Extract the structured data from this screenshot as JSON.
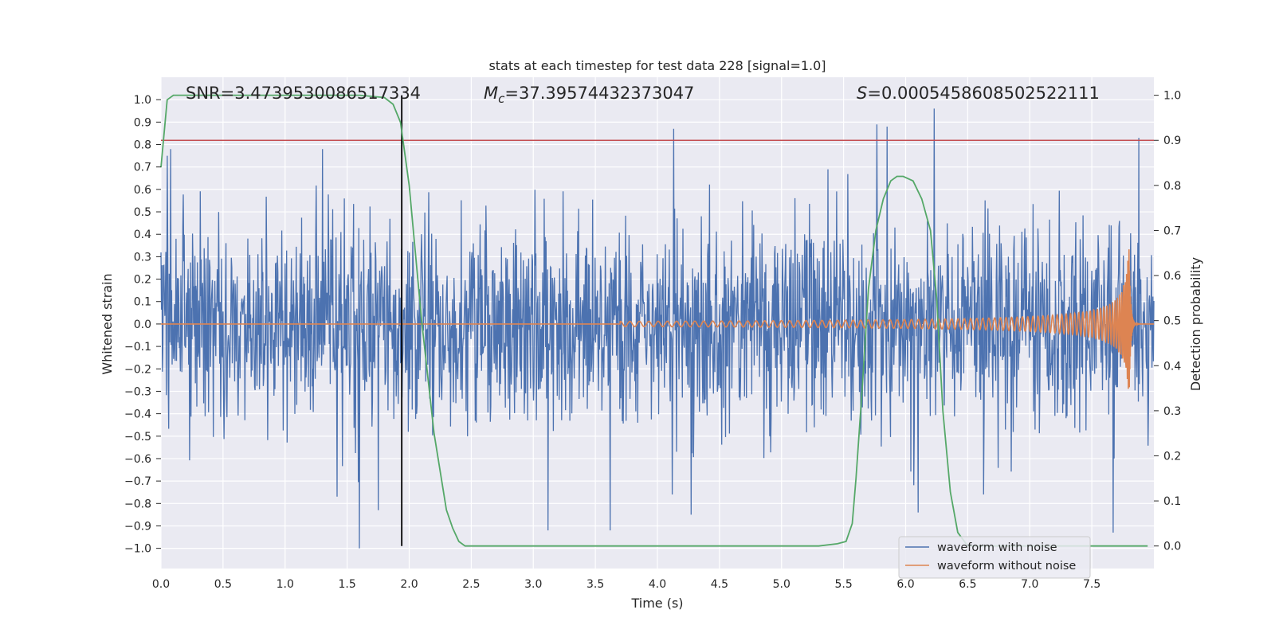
{
  "chart_data": {
    "type": "line",
    "title": "stats at each timestep for test data 228 [signal=1.0]",
    "xlabel": "Time (s)",
    "ylabel": "Whitened strain",
    "y2label": "Detection probability",
    "xlim": [
      0.0,
      8.0
    ],
    "ylim": [
      -1.09,
      1.1
    ],
    "y2lim": [
      -0.05,
      1.04
    ],
    "x_ticks": [
      0.0,
      0.5,
      1.0,
      1.5,
      2.0,
      2.5,
      3.0,
      3.5,
      4.0,
      4.5,
      5.0,
      5.5,
      6.0,
      6.5,
      7.0,
      7.5
    ],
    "x_tick_labels": [
      "0.0",
      "0.5",
      "1.0",
      "1.5",
      "2.0",
      "2.5",
      "3.0",
      "3.5",
      "4.0",
      "4.5",
      "5.0",
      "5.5",
      "6.0",
      "6.5",
      "7.0",
      "7.5"
    ],
    "y_ticks": [
      1.0,
      0.9,
      0.8,
      0.7,
      0.6,
      0.5,
      0.4,
      0.3,
      0.2,
      0.1,
      0.0,
      -0.1,
      -0.2,
      -0.3,
      -0.4,
      -0.5,
      -0.6,
      -0.7,
      -0.8,
      -0.9,
      -1.0
    ],
    "y_tick_labels": [
      "1.0",
      "0.9",
      "0.8",
      "0.7",
      "0.6",
      "0.5",
      "0.4",
      "0.3",
      "0.2",
      "0.1",
      "0.0",
      "−0.1",
      "−0.2",
      "−0.3",
      "−0.4",
      "−0.5",
      "−0.6",
      "−0.7",
      "−0.8",
      "−0.9",
      "−1.0"
    ],
    "y2_ticks": [
      1.0,
      0.9,
      0.8,
      0.7,
      0.6,
      0.5,
      0.4,
      0.3,
      0.2,
      0.1,
      0.0
    ],
    "y2_tick_labels": [
      "1.0",
      "0.9",
      "0.8",
      "0.7",
      "0.6",
      "0.5",
      "0.4",
      "0.3",
      "0.2",
      "0.1",
      "0.0"
    ],
    "annotations": {
      "snr": "SNR=3.4739530086517334",
      "mc_symbol": "M",
      "mc_sub": "c",
      "mc_value": "=37.39574432373047",
      "s_symbol": "S",
      "s_value": "=0.0005458608502522111"
    },
    "detection_threshold": 0.9,
    "detection_time": 1.94,
    "legend": {
      "position": "lower-right",
      "entries": [
        "waveform with noise",
        "waveform without noise"
      ]
    },
    "series": [
      {
        "name": "waveform with noise",
        "color": "#4c72b0",
        "description": "whitened noisy strain, dense fluctuation mostly within ±0.6, peaks near ±1.0",
        "seed": 228,
        "n_samples": 2048,
        "typical_amplitude": 0.22,
        "spikes": [
          {
            "x": 0.05,
            "y": 0.75
          },
          {
            "x": 0.08,
            "y": 0.78
          },
          {
            "x": 1.3,
            "y": 0.78
          },
          {
            "x": 1.6,
            "y": -1.0
          },
          {
            "x": 1.42,
            "y": -0.77
          },
          {
            "x": 1.75,
            "y": -0.83
          },
          {
            "x": 4.13,
            "y": 0.87
          },
          {
            "x": 4.12,
            "y": -0.76
          },
          {
            "x": 3.62,
            "y": -0.92
          },
          {
            "x": 3.12,
            "y": -0.92
          },
          {
            "x": 5.77,
            "y": 0.89
          },
          {
            "x": 5.85,
            "y": 0.88
          },
          {
            "x": 6.23,
            "y": 0.96
          },
          {
            "x": 6.1,
            "y": -0.84
          },
          {
            "x": 7.67,
            "y": -0.93
          },
          {
            "x": 7.88,
            "y": 0.83
          },
          {
            "x": 4.27,
            "y": -0.85
          },
          {
            "x": 6.63,
            "y": -0.76
          }
        ]
      },
      {
        "name": "waveform without noise",
        "color": "#dd8452",
        "description": "gravitational-wave chirp, near-zero until ~4.3 s, amplitude grows to ~±0.37 peaking at 7.8 s then ringdown",
        "chirp": {
          "t_merge": 7.8,
          "peak_amplitude": 0.37,
          "start": 4.3
        }
      },
      {
        "name": "detection probability",
        "axis": "right",
        "color": "#55a868",
        "x": [
          0.0,
          0.05,
          0.1,
          0.3,
          0.8,
          1.2,
          1.6,
          1.8,
          1.87,
          1.93,
          2.0,
          2.1,
          2.2,
          2.3,
          2.35,
          2.4,
          2.45,
          2.6,
          3.0,
          4.0,
          5.0,
          5.3,
          5.45,
          5.52,
          5.57,
          5.6,
          5.65,
          5.7,
          5.76,
          5.82,
          5.88,
          5.93,
          5.98,
          6.06,
          6.13,
          6.2,
          6.25,
          6.3,
          6.36,
          6.42,
          6.5,
          7.0,
          7.5,
          7.95
        ],
        "values": [
          0.84,
          0.99,
          1.0,
          1.0,
          1.0,
          1.0,
          1.0,
          0.995,
          0.98,
          0.94,
          0.8,
          0.5,
          0.25,
          0.08,
          0.04,
          0.01,
          0.0,
          0.0,
          0.0,
          0.0,
          0.0,
          0.0,
          0.005,
          0.01,
          0.05,
          0.15,
          0.35,
          0.57,
          0.7,
          0.77,
          0.81,
          0.82,
          0.82,
          0.81,
          0.77,
          0.7,
          0.55,
          0.3,
          0.12,
          0.03,
          0.0,
          0.0,
          0.0,
          0.0
        ]
      }
    ],
    "colors": {
      "plot_background": "#eaeaf2",
      "grid": "#ffffff",
      "threshold_line": "#c44e52",
      "detection_marker": "#000000"
    }
  }
}
